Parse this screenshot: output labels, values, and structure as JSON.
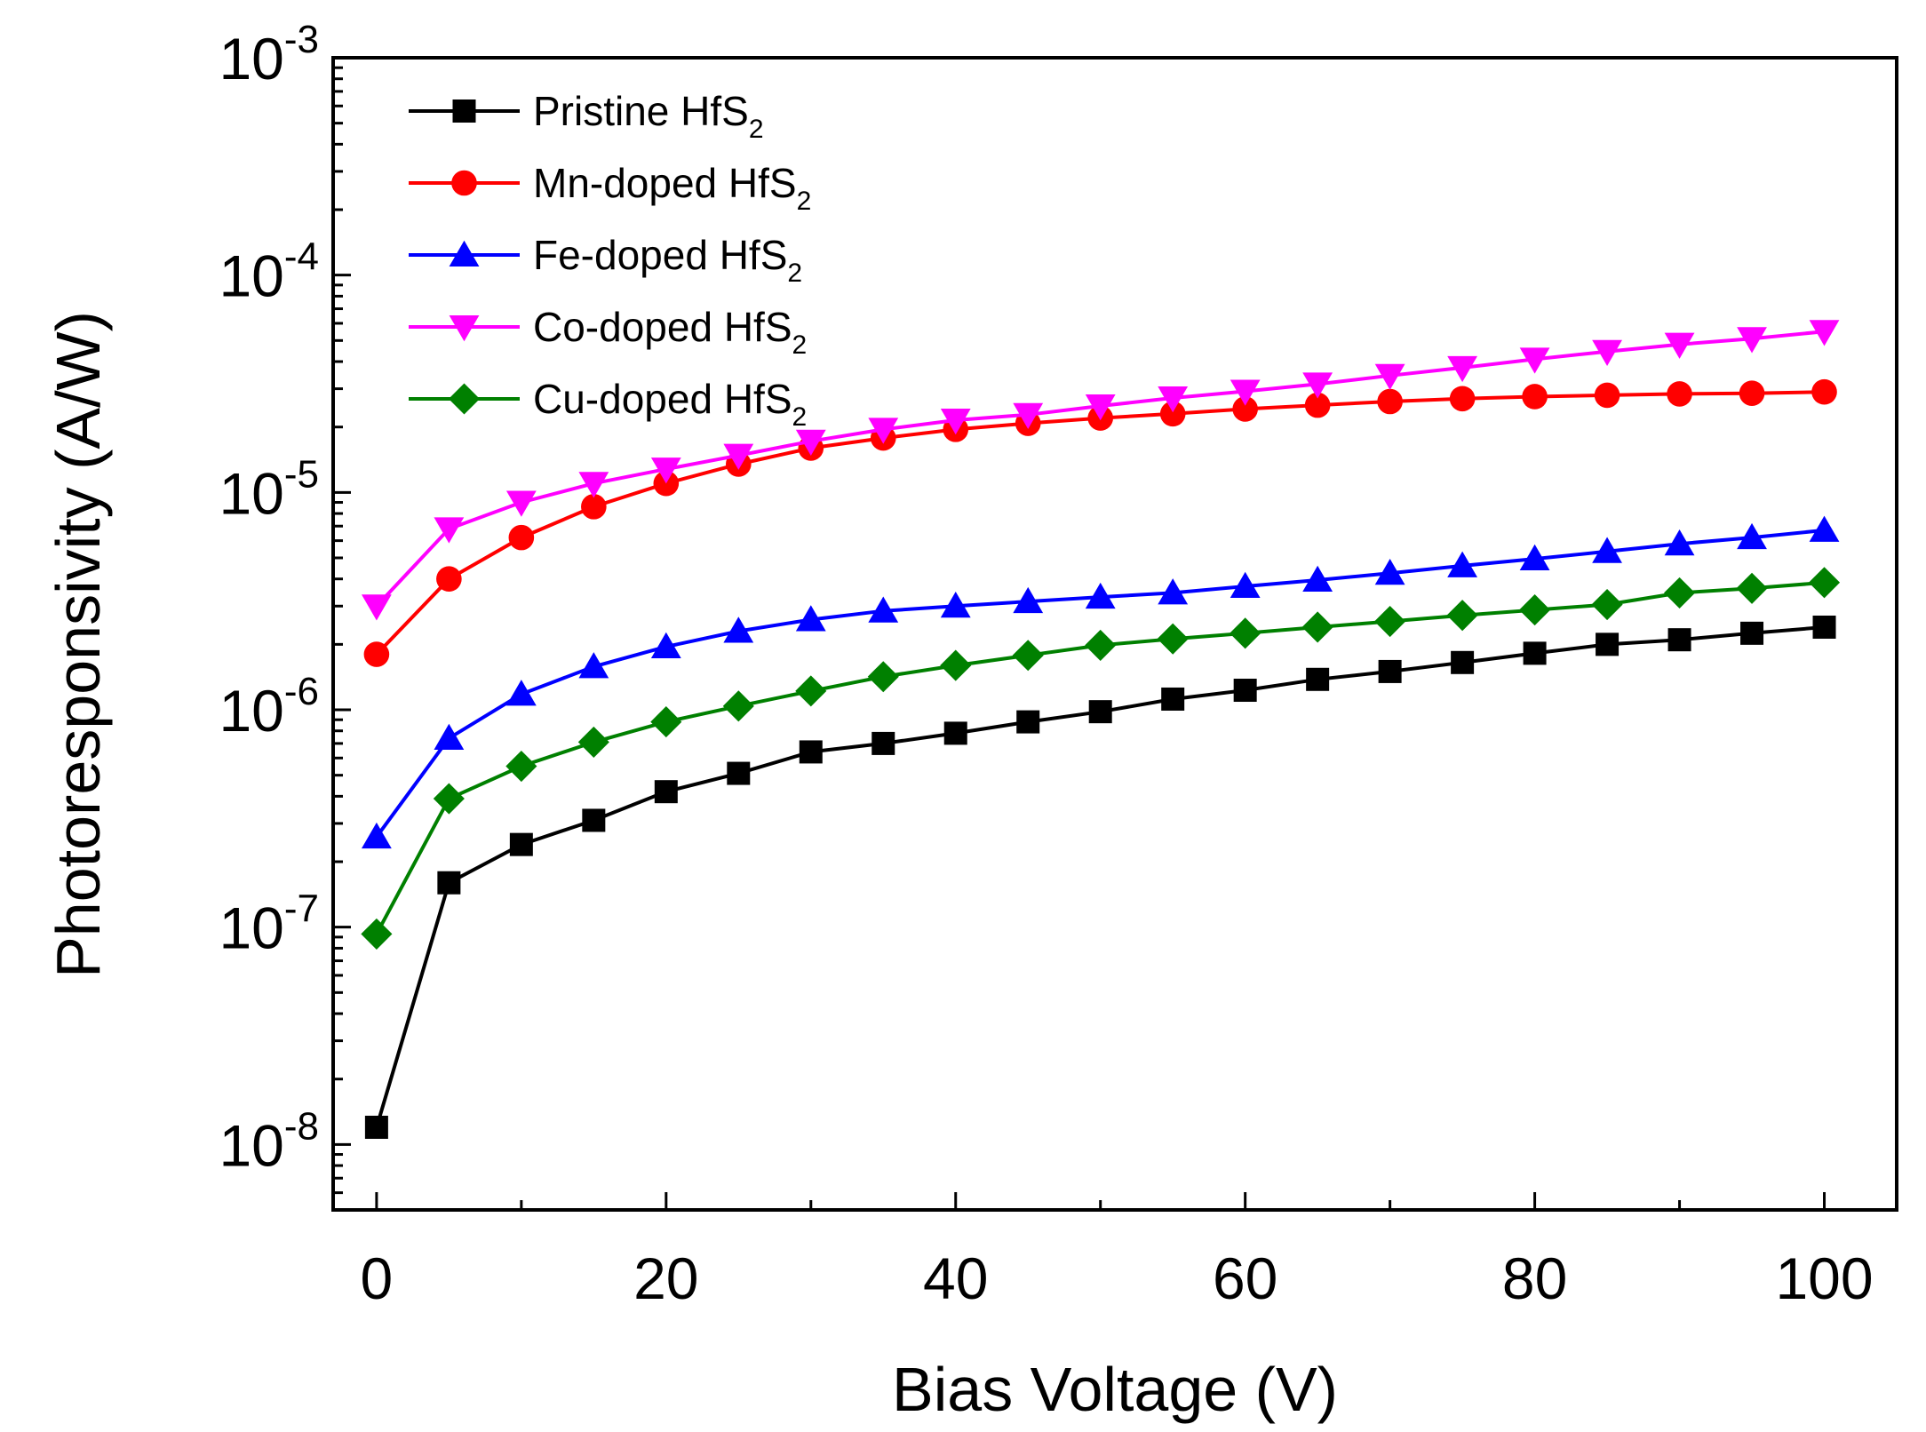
{
  "chart_data": {
    "type": "line",
    "xlabel": "Bias Voltage (V)",
    "ylabel": "Photoresponsivity (A/W)",
    "xlim": [
      -3,
      105
    ],
    "ylim": [
      5e-09,
      0.001
    ],
    "y_scale": "log",
    "grid": false,
    "legend_position": "top-left",
    "x_ticks": [
      0,
      20,
      40,
      60,
      80,
      100
    ],
    "x_tick_labels": [
      "0",
      "20",
      "40",
      "60",
      "80",
      "100"
    ],
    "y_ticks": [
      {
        "value": 1e-08,
        "base": "10",
        "exp": "-8"
      },
      {
        "value": 1e-07,
        "base": "10",
        "exp": "-7"
      },
      {
        "value": 1e-06,
        "base": "10",
        "exp": "-6"
      },
      {
        "value": 1e-05,
        "base": "10",
        "exp": "-5"
      },
      {
        "value": 0.0001,
        "base": "10",
        "exp": "-4"
      },
      {
        "value": 0.001,
        "base": "10",
        "exp": "-3"
      }
    ],
    "x": [
      0,
      5,
      10,
      15,
      20,
      25,
      30,
      35,
      40,
      45,
      50,
      55,
      60,
      65,
      70,
      75,
      80,
      85,
      90,
      95,
      100
    ],
    "series": [
      {
        "name": "Pristine HfS",
        "name_sub": "2",
        "color": "#000000",
        "marker": "square",
        "values": [
          1.2e-08,
          1.6e-07,
          2.4e-07,
          3.1e-07,
          4.2e-07,
          5.1e-07,
          6.4e-07,
          7e-07,
          7.8e-07,
          8.8e-07,
          9.8e-07,
          1.12e-06,
          1.23e-06,
          1.38e-06,
          1.5e-06,
          1.65e-06,
          1.82e-06,
          2e-06,
          2.1e-06,
          2.25e-06,
          2.4e-06
        ]
      },
      {
        "name": "Mn-doped HfS",
        "name_sub": "2",
        "color": "#ff0000",
        "marker": "circle",
        "values": [
          1.8e-06,
          4e-06,
          6.2e-06,
          8.6e-06,
          1.1e-05,
          1.35e-05,
          1.6e-05,
          1.78e-05,
          1.95e-05,
          2.08e-05,
          2.2e-05,
          2.3e-05,
          2.42e-05,
          2.52e-05,
          2.62e-05,
          2.7e-05,
          2.76e-05,
          2.8e-05,
          2.84e-05,
          2.86e-05,
          2.9e-05
        ]
      },
      {
        "name": "Fe-doped HfS",
        "name_sub": "2",
        "color": "#0000ff",
        "marker": "triangle-up",
        "values": [
          2.6e-07,
          7.4e-07,
          1.18e-06,
          1.58e-06,
          1.95e-06,
          2.3e-06,
          2.6e-06,
          2.85e-06,
          3e-06,
          3.15e-06,
          3.3e-06,
          3.45e-06,
          3.7e-06,
          3.95e-06,
          4.25e-06,
          4.6e-06,
          4.95e-06,
          5.35e-06,
          5.8e-06,
          6.2e-06,
          6.7e-06
        ]
      },
      {
        "name": "Co-doped HfS",
        "name_sub": "2",
        "color": "#ff00ff",
        "marker": "triangle-down",
        "values": [
          3e-06,
          6.8e-06,
          9e-06,
          1.1e-05,
          1.28e-05,
          1.48e-05,
          1.72e-05,
          1.95e-05,
          2.15e-05,
          2.28e-05,
          2.5e-05,
          2.72e-05,
          2.92e-05,
          3.15e-05,
          3.45e-05,
          3.75e-05,
          4.1e-05,
          4.45e-05,
          4.8e-05,
          5.1e-05,
          5.5e-05
        ]
      },
      {
        "name": "Cu-doped HfS",
        "name_sub": "2",
        "color": "#008000",
        "marker": "diamond",
        "values": [
          9.3e-08,
          3.9e-07,
          5.5e-07,
          7.1e-07,
          8.8e-07,
          1.04e-06,
          1.22e-06,
          1.42e-06,
          1.6e-06,
          1.78e-06,
          1.98e-06,
          2.12e-06,
          2.25e-06,
          2.4e-06,
          2.55e-06,
          2.72e-06,
          2.88e-06,
          3.05e-06,
          3.45e-06,
          3.62e-06,
          3.85e-06
        ]
      }
    ]
  }
}
